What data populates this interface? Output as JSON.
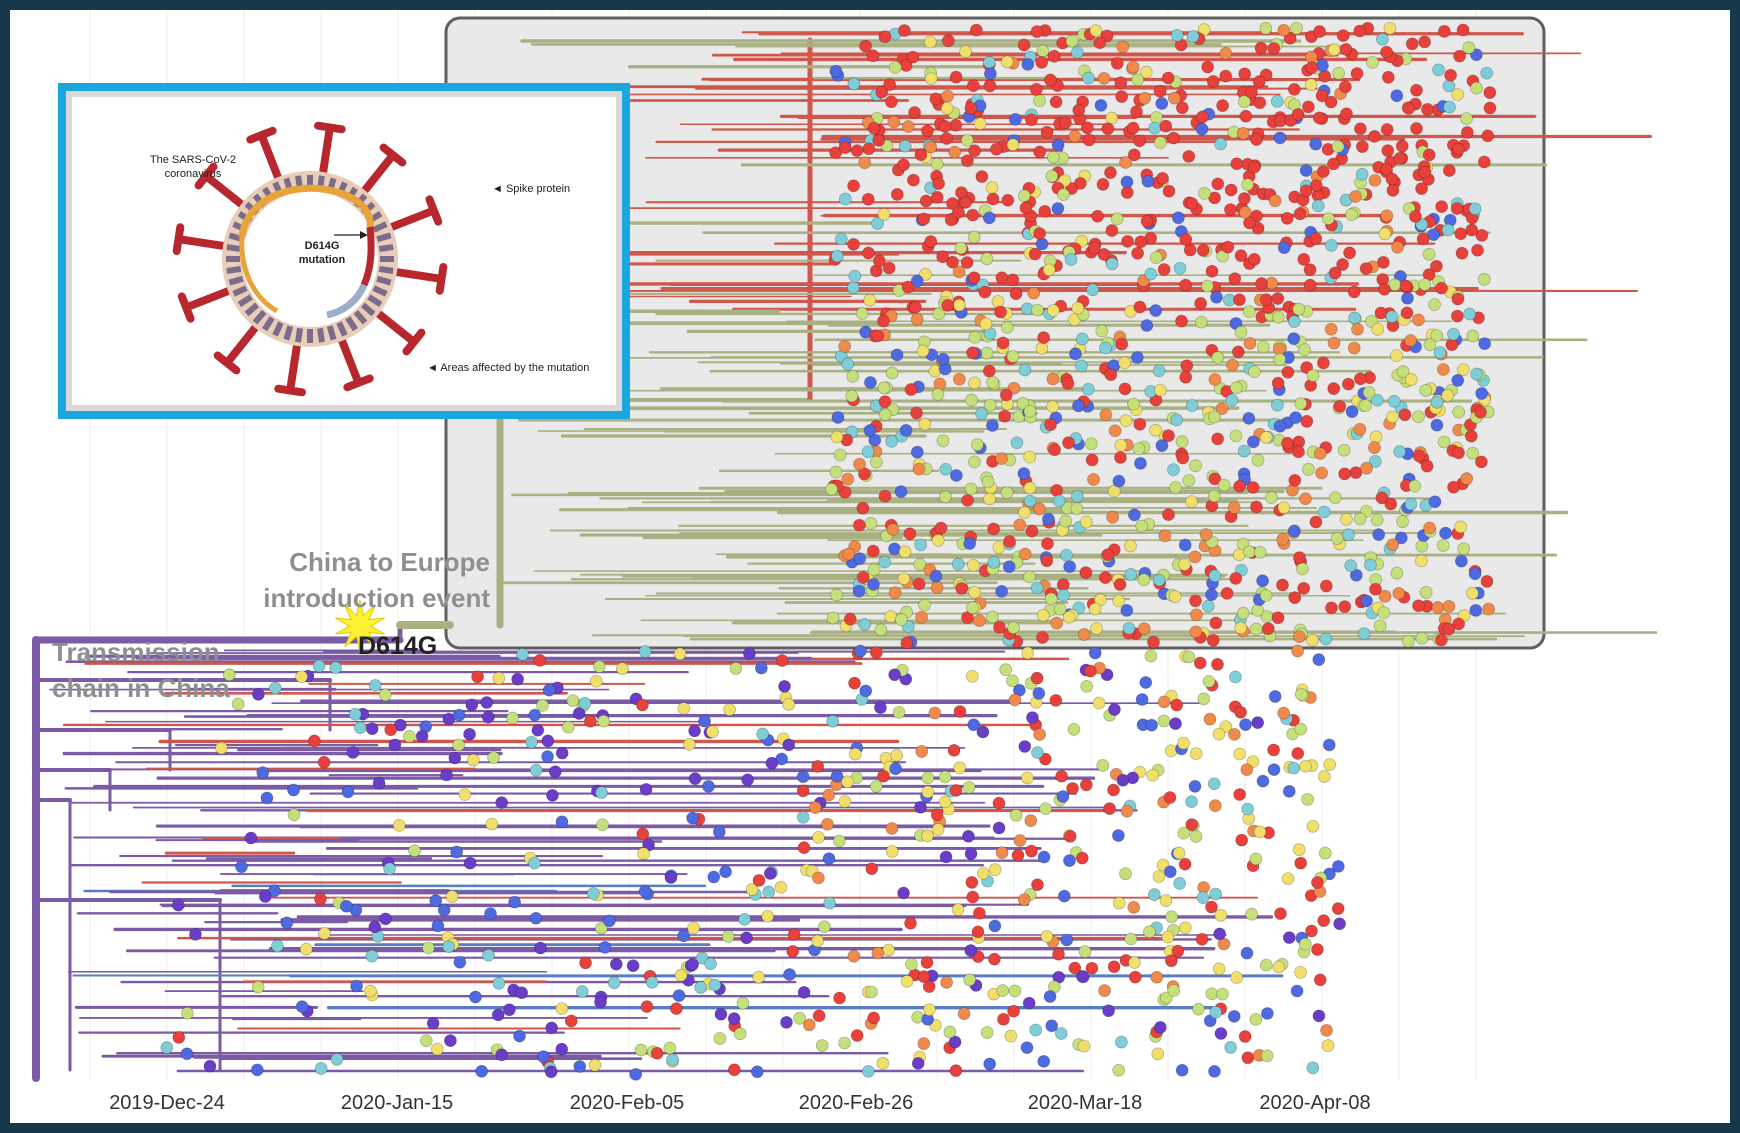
{
  "axis": {
    "ticks": [
      "2019-Dec-24",
      "2020-Jan-15",
      "2020-Feb-05",
      "2020-Feb-26",
      "2020-Mar-18",
      "2020-Apr-08"
    ]
  },
  "annotations": {
    "europe_introduction": "China to Europe\nintroduction event",
    "china_chain": "Transmission\nchain in China",
    "mutation": "D614G"
  },
  "inset": {
    "virus_title": "The SARS-CoV-2\ncoronavirus",
    "spike_label": "◄ Spike protein",
    "mutation_label": "D614G\nmutation",
    "areas_label": "◄ Areas affected by the mutation",
    "colors": {
      "spike": "#b8272e",
      "envelope": "#e8cdb9",
      "membrane": "#7d6b8a",
      "rna": "#e8a33a"
    }
  },
  "colors": {
    "lineage_china": "#7b5aa6",
    "lineage_europe": "#a9b183",
    "lineage_red": "#d0574c",
    "lineage_blue": "#5a7cc2",
    "tips": [
      "#e8403b",
      "#c5e07a",
      "#f0df6a",
      "#7fcdd6",
      "#4f6ae0",
      "#6a3dc8",
      "#f08a4b"
    ],
    "highlight_box": "#e9e9e9",
    "star": "#fff033"
  },
  "icons": {
    "mutation_marker": "star-burst-icon",
    "virus": "coronavirus-icon"
  }
}
